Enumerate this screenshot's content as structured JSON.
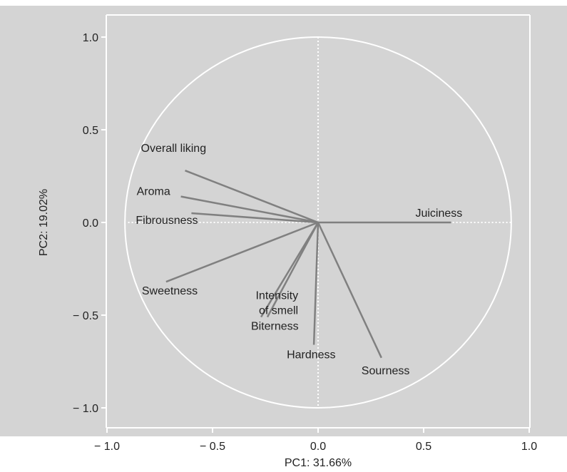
{
  "chart_data": {
    "type": "scatter",
    "subtype": "pca-correlation-circle",
    "xlabel": "PC1: 31.66%",
    "ylabel": "PC2: 19.02%",
    "xlim": [
      -1.0,
      1.0
    ],
    "ylim": [
      -1.0,
      1.0
    ],
    "x_ticks": [
      -1.0,
      -0.5,
      0.0,
      0.5,
      1.0
    ],
    "x_tick_labels": [
      "− 1.0",
      "− 0.5",
      "0.0",
      "0.5",
      "1.0"
    ],
    "y_ticks": [
      1.0,
      0.5,
      0.0,
      -0.5,
      -1.0
    ],
    "y_tick_labels": [
      "1.0",
      "0.5",
      "0.0",
      "− 0.5",
      "− 1.0"
    ],
    "grid": false,
    "reference_lines": "dotted lines at x = 0 and y = 0",
    "unit_circle": true,
    "colors": {
      "panel_background": "#d4d4d4",
      "circle": "#ffffff",
      "reference_line": "#ffffff",
      "vector": "#808080",
      "frame": "#ffffff"
    },
    "variables": [
      {
        "name": "Overall liking",
        "x": -0.63,
        "y": 0.28
      },
      {
        "name": "Aroma",
        "x": -0.65,
        "y": 0.14
      },
      {
        "name": "Fibrousness",
        "x": -0.6,
        "y": 0.05
      },
      {
        "name": "Juiciness",
        "x": 0.63,
        "y": 0.0
      },
      {
        "name": "Sweetness",
        "x": -0.72,
        "y": -0.32
      },
      {
        "name": "Intensity of smell",
        "x": -0.27,
        "y": -0.51
      },
      {
        "name": "Biterness",
        "x": -0.24,
        "y": -0.51
      },
      {
        "name": "Hardness",
        "x": -0.02,
        "y": -0.66
      },
      {
        "name": "Sourness",
        "x": 0.3,
        "y": -0.73
      }
    ]
  }
}
